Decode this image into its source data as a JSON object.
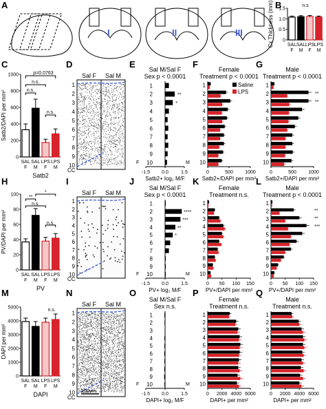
{
  "panel_labels": [
    "A",
    "B",
    "C",
    "D",
    "E",
    "F",
    "G",
    "H",
    "I",
    "J",
    "K",
    "L",
    "M",
    "N",
    "O",
    "P",
    "Q"
  ],
  "panel_A": {
    "region_labels": [
      "I",
      "II",
      "III"
    ]
  },
  "colors": {
    "sal_f": "#ffffff",
    "sal_m": "#000000",
    "lps_f": "#f4c7c9",
    "lps_m": "#d8232a",
    "saline": "#000000",
    "lps": "#d8232a",
    "blue": "#3b5bd9",
    "bar_border_f": "#d8232a"
  },
  "labels_group": [
    "SAL",
    "SAL",
    "LPS",
    "LPS"
  ],
  "labels_sex": [
    "F",
    "M",
    "F",
    "M"
  ],
  "layer_labels": [
    "1",
    "2",
    "3",
    "4",
    "5",
    "6",
    "7",
    "8",
    "9",
    "10"
  ],
  "cc_label": "CC",
  "scalebar_label": "200um",
  "chart_data": [
    {
      "id": "B",
      "type": "bar",
      "title": "",
      "ylabel": "Cx Thickness (mm)",
      "ylim": [
        0,
        1.5
      ],
      "yticks": [
        "0",
        "0.5",
        "1.0",
        "1.5"
      ],
      "categories": [
        "SAL F",
        "SAL M",
        "LPS F",
        "LPS M"
      ],
      "values": [
        1.08,
        1.1,
        1.11,
        1.09
      ],
      "errors": [
        0.05,
        0.05,
        0.05,
        0.04
      ],
      "annotations": [
        "n.s"
      ]
    },
    {
      "id": "C",
      "type": "bar",
      "title": "",
      "ylabel": "Satb2/DAPI per mm²",
      "xlabel": "Satb2",
      "ylim": [
        0,
        1000
      ],
      "yticks": [
        "0",
        "200",
        "400",
        "600",
        "800",
        "1000"
      ],
      "categories": [
        "SAL F",
        "SAL M",
        "LPS F",
        "LPS M"
      ],
      "values": [
        330,
        590,
        175,
        280
      ],
      "errors": [
        70,
        110,
        40,
        60
      ],
      "annotations": [
        "p=0.0763",
        "n.s.",
        "n.s.",
        "n.s."
      ]
    },
    {
      "id": "E",
      "type": "bar",
      "orientation": "horizontal",
      "title": "Sal M/Sal F",
      "subtitle": "Sex p < 0.0001",
      "xlabel": "Satb2+ log₂ M/F",
      "xlim": [
        -1.5,
        1.5
      ],
      "xticks": [
        "-1.5",
        "0.0",
        "1.5"
      ],
      "end_labels": [
        "F",
        "M"
      ],
      "categories": [
        "1",
        "2",
        "3",
        "4",
        "5",
        "6",
        "7",
        "8",
        "9",
        "10"
      ],
      "values": [
        0.3,
        0.75,
        0.6,
        0.3,
        0.2,
        0.25,
        0.2,
        0.25,
        0.2,
        0.15
      ],
      "annotations": [
        "**",
        "*"
      ]
    },
    {
      "id": "F",
      "type": "bar",
      "orientation": "horizontal",
      "title": "Female",
      "subtitle": "Treatment p < 0.0001",
      "xlabel": "Satb2+/DAPI per mm²",
      "xlim": [
        0,
        1000
      ],
      "xticks": [
        "0",
        "500",
        "1000"
      ],
      "legend": [
        "Saline",
        "LPS"
      ],
      "categories": [
        "1",
        "2",
        "3",
        "4",
        "5",
        "6",
        "7",
        "8",
        "9",
        "10"
      ],
      "series": [
        {
          "name": "Saline",
          "values": [
            70,
            430,
            530,
            470,
            450,
            400,
            380,
            380,
            360,
            330
          ]
        },
        {
          "name": "LPS",
          "values": [
            50,
            300,
            340,
            330,
            340,
            290,
            290,
            270,
            250,
            250
          ]
        }
      ]
    },
    {
      "id": "G",
      "type": "bar",
      "orientation": "horizontal",
      "title": "Male",
      "subtitle": "Treatment p < 0.0001",
      "xlabel": "Satb2+/DAPI per mm²",
      "xlim": [
        0,
        1000
      ],
      "xticks": [
        "0",
        "500",
        "1000"
      ],
      "categories": [
        "1",
        "2",
        "3",
        "4",
        "5",
        "6",
        "7",
        "8",
        "9",
        "10"
      ],
      "series": [
        {
          "name": "Saline",
          "values": [
            80,
            880,
            880,
            730,
            640,
            560,
            500,
            500,
            510,
            480
          ]
        },
        {
          "name": "LPS",
          "values": [
            60,
            380,
            430,
            420,
            410,
            380,
            340,
            340,
            330,
            310
          ]
        }
      ],
      "annotations": [
        "**",
        "**"
      ]
    },
    {
      "id": "H",
      "type": "bar",
      "title": "",
      "ylabel": "PV/DAPI per mm²",
      "xlabel": "PV",
      "ylim": [
        0,
        100
      ],
      "yticks": [
        "0",
        "20",
        "40",
        "60",
        "80",
        "100"
      ],
      "categories": [
        "SAL F",
        "SAL M",
        "LPS F",
        "LPS M"
      ],
      "values": [
        37,
        72,
        38,
        42
      ],
      "errors": [
        4,
        9,
        5,
        6
      ],
      "annotations": [
        "**",
        "*",
        "n.s.",
        "n.s."
      ]
    },
    {
      "id": "J",
      "type": "bar",
      "orientation": "horizontal",
      "title": "Sal M/Sal F",
      "subtitle": "Sex p < 0.0001",
      "xlabel": "PV+ log₂ M/F",
      "xlim": [
        -1.5,
        1.5
      ],
      "xticks": [
        "-1.5",
        "0.0",
        "1.5"
      ],
      "end_labels": [
        "F",
        "M"
      ],
      "categories": [
        "1",
        "2",
        "3",
        "4",
        "5",
        "6",
        "7",
        "8",
        "9",
        "10"
      ],
      "values": [
        0.0,
        1.3,
        1.2,
        0.8,
        0.6,
        0.4,
        0.3,
        0.0,
        0.0,
        0.0
      ],
      "annotations": [
        "****",
        "***",
        "**",
        "*"
      ]
    },
    {
      "id": "K",
      "type": "bar",
      "orientation": "horizontal",
      "title": "Female",
      "subtitle": "Treatment n.s.",
      "xlabel": "PV+/DAPI per mm²",
      "xlim": [
        0,
        150
      ],
      "xticks": [
        "0",
        "50",
        "100",
        "150"
      ],
      "categories": [
        "1",
        "2",
        "3",
        "4",
        "5",
        "6",
        "7",
        "8",
        "9",
        "10"
      ],
      "series": [
        {
          "name": "Saline",
          "values": [
            5,
            25,
            40,
            55,
            50,
            40,
            35,
            25,
            18,
            10
          ]
        },
        {
          "name": "LPS",
          "values": [
            3,
            22,
            45,
            60,
            55,
            48,
            38,
            28,
            20,
            12
          ]
        }
      ]
    },
    {
      "id": "L",
      "type": "bar",
      "orientation": "horizontal",
      "title": "Male",
      "subtitle": "Treatment p < 0.0001",
      "xlabel": "PV+/DAPI per mm²",
      "xlim": [
        0,
        150
      ],
      "xticks": [
        "0",
        "50",
        "100",
        "150"
      ],
      "categories": [
        "1",
        "2",
        "3",
        "4",
        "5",
        "6",
        "7",
        "8",
        "9",
        "10"
      ],
      "series": [
        {
          "name": "Saline",
          "values": [
            5,
            80,
            100,
            125,
            110,
            90,
            70,
            45,
            25,
            12
          ]
        },
        {
          "name": "LPS",
          "values": [
            4,
            30,
            50,
            60,
            70,
            65,
            50,
            35,
            20,
            10
          ]
        }
      ],
      "annotations": [
        "**",
        "**",
        "***"
      ]
    },
    {
      "id": "M",
      "type": "bar",
      "title": "",
      "ylabel": "DAPI per mm²",
      "xlabel": "DAPI",
      "ylim": [
        0,
        5000
      ],
      "yticks": [
        "0",
        "1000",
        "2000",
        "3000",
        "4000",
        "5000"
      ],
      "categories": [
        "SAL F",
        "SAL M",
        "LPS F",
        "LPS M"
      ],
      "values": [
        3950,
        3600,
        3900,
        4100
      ],
      "errors": [
        250,
        350,
        300,
        400
      ],
      "annotations": [
        "n.s."
      ]
    },
    {
      "id": "O",
      "type": "bar",
      "orientation": "horizontal",
      "title": "Sal M/Sal F",
      "subtitle": "Sex n.s.",
      "xlabel": "DAPI+ log₂ M/F",
      "xlim": [
        -1.5,
        1.5
      ],
      "xticks": [
        "-1.5",
        "0.0",
        "1.5"
      ],
      "end_labels": [
        "F",
        "M"
      ],
      "categories": [
        "1",
        "2",
        "3",
        "4",
        "5",
        "6",
        "7",
        "8",
        "9",
        "10"
      ],
      "values": [
        -0.05,
        -0.04,
        -0.03,
        -0.05,
        -0.05,
        -0.06,
        -0.05,
        -0.06,
        -0.07,
        -0.05
      ]
    },
    {
      "id": "P",
      "type": "bar",
      "orientation": "horizontal",
      "title": "Female",
      "subtitle": "Treatment n.s.",
      "xlabel": "DAPI+ per mm²",
      "xlim": [
        0,
        6000
      ],
      "xticks": [
        "0",
        "2000",
        "4000",
        "6000"
      ],
      "categories": [
        "1",
        "2",
        "3",
        "4",
        "5",
        "6",
        "7",
        "8",
        "9",
        "10"
      ],
      "series": [
        {
          "name": "Saline",
          "values": [
            3100,
            4000,
            4300,
            4500,
            4600,
            4500,
            4400,
            4300,
            4200,
            4100
          ]
        },
        {
          "name": "LPS",
          "values": [
            3000,
            3900,
            4200,
            4400,
            4500,
            4400,
            4300,
            4500,
            4600,
            4400
          ]
        }
      ]
    },
    {
      "id": "Q",
      "type": "bar",
      "orientation": "horizontal",
      "title": "Male",
      "subtitle": "Treatment n.s.",
      "xlabel": "DAPI+ per mm²",
      "xlim": [
        0,
        6000
      ],
      "xticks": [
        "0",
        "2000",
        "4000",
        "6000"
      ],
      "categories": [
        "1",
        "2",
        "3",
        "4",
        "5",
        "6",
        "7",
        "8",
        "9",
        "10"
      ],
      "series": [
        {
          "name": "Saline",
          "values": [
            2900,
            3900,
            4300,
            4500,
            4500,
            4400,
            4300,
            4200,
            4100,
            4000
          ]
        },
        {
          "name": "LPS",
          "values": [
            3000,
            4000,
            4500,
            4700,
            4700,
            4600,
            4500,
            4600,
            4500,
            4300
          ]
        }
      ]
    }
  ],
  "micrographs": [
    {
      "id": "D",
      "columns": [
        "Sal F",
        "Sal M"
      ]
    },
    {
      "id": "I",
      "columns": [
        "Sal F",
        "Sal M"
      ]
    },
    {
      "id": "N",
      "columns": [
        "Sal F",
        "Sal M"
      ]
    }
  ]
}
